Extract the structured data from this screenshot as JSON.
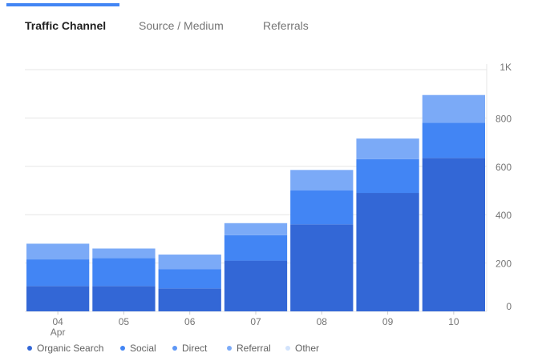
{
  "tabs": [
    {
      "label": "Traffic Channel",
      "active": true
    },
    {
      "label": "Source / Medium",
      "active": false
    },
    {
      "label": "Referrals",
      "active": false
    }
  ],
  "colors": {
    "tab_indicator": "#4285f4",
    "organic_search": "#3367d6",
    "social": "#4285f4",
    "direct": "#4285f4",
    "referral": "#7baaf7",
    "other": "#d2e3fc"
  },
  "chart_data": {
    "type": "bar",
    "stacked": true,
    "categories": [
      "04",
      "05",
      "06",
      "07",
      "08",
      "09",
      "10"
    ],
    "category_sublabels": [
      "Apr",
      "",
      "",
      "",
      "",
      "",
      ""
    ],
    "y_axis_position": "right",
    "y_ticks": [
      "0",
      "200",
      "400",
      "600",
      "800",
      "1K"
    ],
    "ylim": [
      0,
      1000
    ],
    "grid": true,
    "legend_position": "bottom-left",
    "series": [
      {
        "name": "Organic Search",
        "color": "#3367d6",
        "values": [
          105,
          105,
          95,
          210,
          360,
          490,
          635
        ]
      },
      {
        "name": "Social",
        "color": "#4285f4",
        "values": [
          0,
          0,
          0,
          0,
          0,
          0,
          0
        ]
      },
      {
        "name": "Direct",
        "color": "#4285f4",
        "values": [
          110,
          115,
          80,
          105,
          140,
          140,
          145
        ]
      },
      {
        "name": "Referral",
        "color": "#7baaf7",
        "values": [
          65,
          40,
          60,
          50,
          85,
          85,
          115
        ]
      },
      {
        "name": "Other",
        "color": "#d2e3fc",
        "values": [
          0,
          0,
          0,
          0,
          0,
          0,
          0
        ]
      }
    ]
  }
}
